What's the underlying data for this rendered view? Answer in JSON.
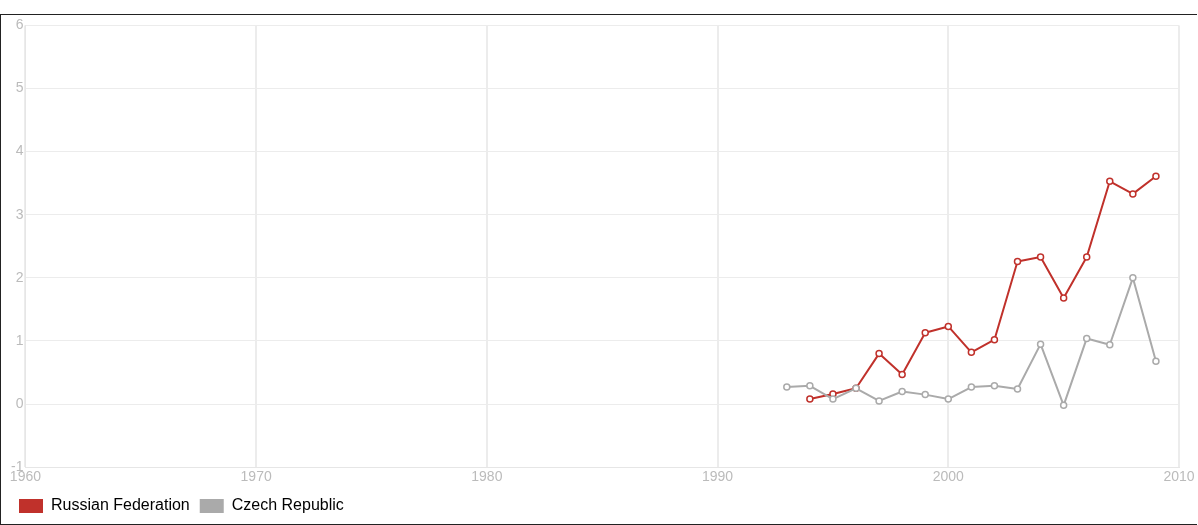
{
  "chart_data": {
    "type": "line",
    "x": [
      1993,
      1994,
      1995,
      1996,
      1997,
      1998,
      1999,
      2000,
      2001,
      2002,
      2003,
      2004,
      2005,
      2006,
      2007,
      2008,
      2009
    ],
    "series": [
      {
        "name": "Russian Federation",
        "color": "#c0312b",
        "values": [
          null,
          0.08,
          0.16,
          0.25,
          0.8,
          0.47,
          1.13,
          1.23,
          0.82,
          1.02,
          2.26,
          2.33,
          1.68,
          2.33,
          3.53,
          3.33,
          3.61
        ]
      },
      {
        "name": "Czech Republic",
        "color": "#aaaaaa",
        "values": [
          0.27,
          0.29,
          0.08,
          0.25,
          0.05,
          0.2,
          0.15,
          0.08,
          0.27,
          0.29,
          0.24,
          0.95,
          -0.02,
          1.04,
          0.94,
          2.0,
          0.68
        ]
      }
    ],
    "xlim": [
      1960,
      2010
    ],
    "xticks": [
      1960,
      1970,
      1980,
      1990,
      2000,
      2010
    ],
    "ylim": [
      -1,
      6
    ],
    "yticks": [
      -1,
      0,
      1,
      2,
      3,
      4,
      5,
      6
    ],
    "grid": true,
    "legend": "bottom left",
    "marker": "circle",
    "line_style": "solid"
  }
}
